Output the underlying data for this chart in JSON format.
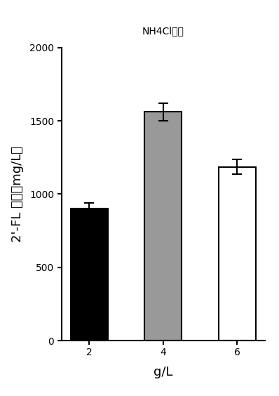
{
  "title": "NH4Cl浓度",
  "xlabel": "g/L",
  "ylabel": "2'-FL 浓度（mg/L）",
  "categories": [
    "2",
    "4",
    "6"
  ],
  "values": [
    900,
    1560,
    1185
  ],
  "errors": [
    40,
    60,
    50
  ],
  "bar_colors": [
    "#000000",
    "#999999",
    "#ffffff"
  ],
  "bar_edgecolors": [
    "#000000",
    "#000000",
    "#000000"
  ],
  "ylim": [
    0,
    2000
  ],
  "yticks": [
    0,
    500,
    1000,
    1500,
    2000
  ],
  "bar_width": 0.5,
  "figsize": [
    3.98,
    5.64
  ],
  "dpi": 100,
  "title_fontsize": 20,
  "axis_label_fontsize": 13,
  "tick_fontsize": 13
}
